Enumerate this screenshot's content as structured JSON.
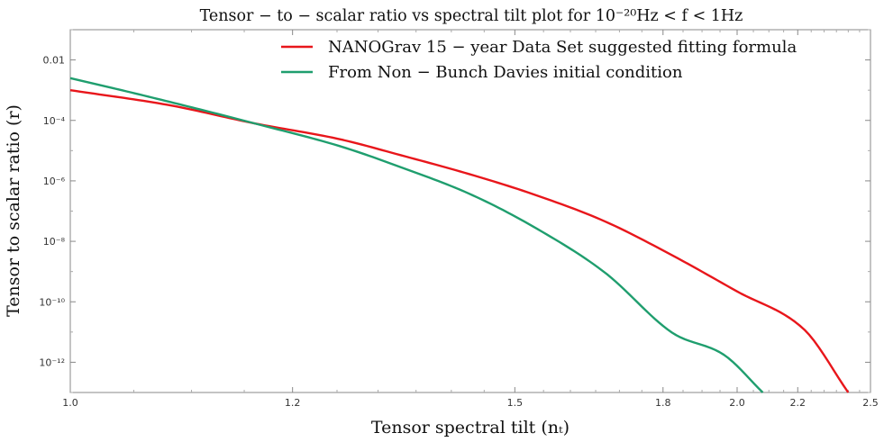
{
  "chart_data": {
    "type": "line",
    "title": "Tensor − to − scalar ratio vs spectral tilt plot for 10⁻²⁰Hz  <  f  <  1Hz",
    "xlabel": "Tensor spectral tilt (nₜ)",
    "ylabel": "Tensor to scalar ratio (r)",
    "x_scale": "reciprocal",
    "y_scale": "log",
    "xlim": [
      1.0,
      2.5
    ],
    "ylim": [
      1e-13,
      0.1
    ],
    "x_ticks": [
      1.0,
      1.2,
      1.5,
      1.8,
      2.0,
      2.2,
      2.5
    ],
    "x_tick_labels": [
      "1.0",
      "1.2",
      "1.5",
      "1.8",
      "2.0",
      "2.2",
      "2.5"
    ],
    "y_ticks": [
      0.01,
      0.0001,
      1e-06,
      1e-08,
      1e-10,
      1e-12
    ],
    "y_tick_labels": [
      "0.01",
      "10⁻⁴",
      "10⁻⁶",
      "10⁻⁸",
      "10⁻¹⁰",
      "10⁻¹²"
    ],
    "legend_position": "top-right",
    "grid": false,
    "series": [
      {
        "name": "NANOGrav 15 − year Data Set suggested fitting formula",
        "color": "#e8161b",
        "x": [
          1.0,
          1.08,
          1.16,
          1.25,
          1.33,
          1.43,
          1.54,
          1.67,
          1.82,
          2.0,
          2.22,
          2.4
        ],
        "y": [
          0.001,
          0.00032,
          8e-05,
          2.5e-05,
          7e-06,
          1.6e-06,
          3.2e-07,
          4.5e-08,
          3.6e-09,
          2.2e-10,
          1.3e-11,
          1e-13
        ]
      },
      {
        "name": "From Non − Bunch Davies initial condition",
        "color": "#1f9e6e",
        "x": [
          1.0,
          1.05,
          1.11,
          1.16,
          1.25,
          1.33,
          1.43,
          1.54,
          1.67,
          1.82,
          1.96,
          2.08
        ],
        "y": [
          0.0025,
          0.0008,
          0.00022,
          8e-05,
          1.5e-05,
          2.8e-06,
          3.5e-07,
          2.5e-08,
          9e-10,
          1e-11,
          1.8e-12,
          1e-13
        ]
      }
    ]
  }
}
